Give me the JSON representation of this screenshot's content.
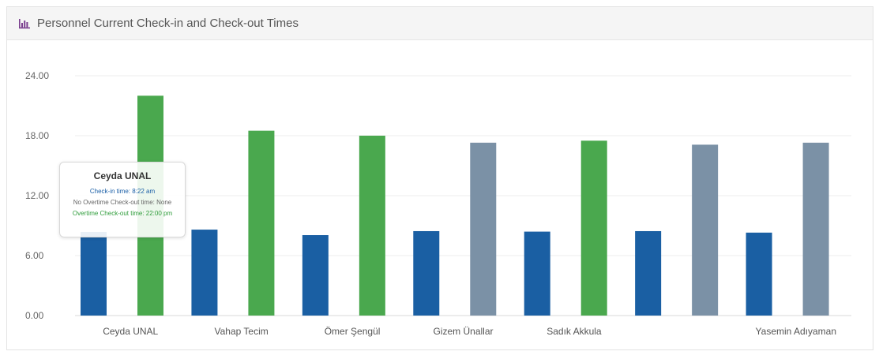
{
  "panel": {
    "title": "Personnel Current Check-in and Check-out Times",
    "icon": "bar-chart-icon"
  },
  "chart_data": {
    "type": "bar",
    "categories": [
      "Ceyda UNAL",
      "Vahap Tecim",
      "Ömer Şengül",
      "Gizem Ünallar",
      "Sadık Akkula",
      "",
      "Yasemin Adıyaman"
    ],
    "series": [
      {
        "name": "Check-in time",
        "color": "#1a5fa3",
        "values": [
          8.37,
          8.6,
          8.05,
          8.45,
          8.4,
          8.45,
          8.3
        ]
      },
      {
        "name": "Check-out time",
        "values": [
          22.0,
          18.5,
          18.0,
          17.3,
          17.5,
          17.1,
          17.3
        ],
        "colors": [
          "#4aa84e",
          "#4aa84e",
          "#4aa84e",
          "#7b91a6",
          "#4aa84e",
          "#7b91a6",
          "#7b91a6"
        ]
      }
    ],
    "xlabel": "",
    "ylabel": "",
    "ylim": [
      0,
      24
    ],
    "yticks": [
      "0.00",
      "6.00",
      "12.00",
      "18.00",
      "24.00"
    ],
    "ytick_values": [
      0,
      6,
      12,
      18,
      24
    ],
    "grid": true,
    "legend": "none"
  },
  "tooltip": {
    "title": "Ceyda UNAL",
    "checkin": "Check-in time: 8:22 am",
    "no_overtime": "No Overtime Check-out time: None",
    "overtime": "Overtime Check-out time: 22:00 pm"
  }
}
